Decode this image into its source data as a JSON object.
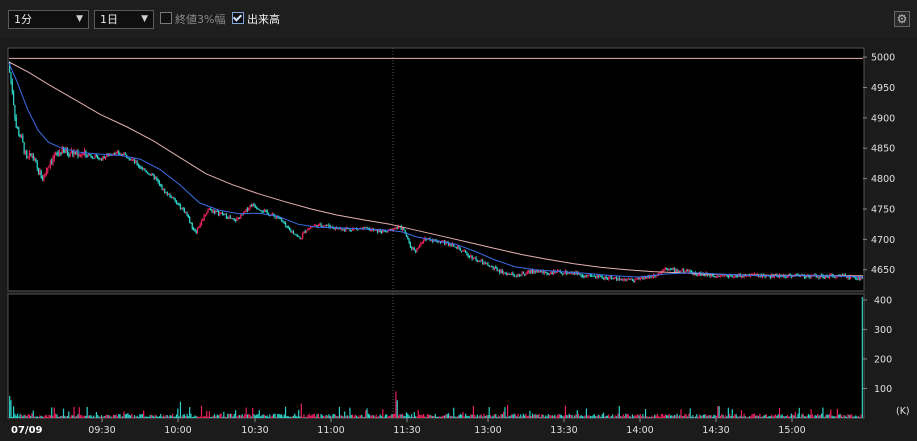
{
  "toolbar": {
    "interval_select": "1分",
    "range_select": "1日",
    "close_3pct_label": "終値3%幅",
    "close_3pct_checked": false,
    "volume_label": "出来高",
    "volume_checked": true
  },
  "colors": {
    "up": "#e8215a",
    "down": "#2ed2c8",
    "ma_short": "#3a6fe8",
    "ma_long": "#e6b0b0",
    "limit_line": "#e6b0b0"
  },
  "chart_data": {
    "type": "candlestick",
    "date_label": "07/09",
    "price_axis": {
      "ylim": [
        4615,
        5015
      ],
      "ticks": [
        "5000",
        "4950",
        "4900",
        "4850",
        "4800",
        "4750",
        "4700",
        "4650"
      ]
    },
    "volume_axis": {
      "ylim": [
        0,
        420
      ],
      "ticks": [
        "400",
        "300",
        "200",
        "100"
      ],
      "unit": "(K)"
    },
    "x_labels": [
      "09:30",
      "10:00",
      "10:30",
      "11:00",
      "11:30",
      "13:00",
      "13:30",
      "14:00",
      "14:30",
      "15:00"
    ],
    "reference_line": 4998,
    "price_path": [
      [
        0,
        4990
      ],
      [
        3,
        4945
      ],
      [
        6,
        4885
      ],
      [
        10,
        4865
      ],
      [
        14,
        4830
      ],
      [
        18,
        4840
      ],
      [
        22,
        4815
      ],
      [
        26,
        4800
      ],
      [
        32,
        4830
      ],
      [
        40,
        4845
      ],
      [
        50,
        4842
      ],
      [
        60,
        4840
      ],
      [
        70,
        4832
      ],
      [
        80,
        4843
      ],
      [
        90,
        4838
      ],
      [
        100,
        4820
      ],
      [
        106,
        4810
      ],
      [
        112,
        4800
      ],
      [
        118,
        4780
      ],
      [
        124,
        4770
      ],
      [
        130,
        4755
      ],
      [
        135,
        4745
      ],
      [
        140,
        4720
      ],
      [
        143,
        4713
      ],
      [
        148,
        4735
      ],
      [
        152,
        4750
      ],
      [
        158,
        4745
      ],
      [
        165,
        4740
      ],
      [
        172,
        4730
      ],
      [
        178,
        4740
      ],
      [
        185,
        4758
      ],
      [
        190,
        4752
      ],
      [
        198,
        4742
      ],
      [
        206,
        4736
      ],
      [
        212,
        4718
      ],
      [
        218,
        4710
      ],
      [
        222,
        4700
      ],
      [
        226,
        4715
      ],
      [
        232,
        4722
      ],
      [
        240,
        4724
      ],
      [
        250,
        4718
      ],
      [
        260,
        4717
      ],
      [
        270,
        4718
      ],
      [
        280,
        4714
      ],
      [
        288,
        4712
      ],
      [
        295,
        4720
      ],
      [
        300,
        4718
      ],
      [
        303,
        4705
      ],
      [
        306,
        4688
      ],
      [
        310,
        4682
      ],
      [
        314,
        4692
      ],
      [
        318,
        4702
      ],
      [
        325,
        4698
      ],
      [
        332,
        4695
      ],
      [
        340,
        4690
      ],
      [
        346,
        4680
      ],
      [
        352,
        4672
      ],
      [
        358,
        4665
      ],
      [
        366,
        4656
      ],
      [
        374,
        4648
      ],
      [
        382,
        4642
      ],
      [
        390,
        4642
      ],
      [
        400,
        4648
      ],
      [
        410,
        4645
      ],
      [
        420,
        4646
      ],
      [
        430,
        4645
      ],
      [
        440,
        4640
      ],
      [
        450,
        4638
      ],
      [
        460,
        4636
      ],
      [
        470,
        4634
      ],
      [
        480,
        4635
      ],
      [
        490,
        4640
      ],
      [
        496,
        4645
      ],
      [
        500,
        4655
      ],
      [
        504,
        4650
      ],
      [
        512,
        4648
      ],
      [
        520,
        4645
      ],
      [
        530,
        4642
      ],
      [
        540,
        4641
      ],
      [
        550,
        4640
      ],
      [
        560,
        4640
      ],
      [
        570,
        4641
      ],
      [
        580,
        4639
      ],
      [
        590,
        4640
      ],
      [
        600,
        4641
      ],
      [
        610,
        4640
      ],
      [
        620,
        4638
      ],
      [
        628,
        4640
      ],
      [
        636,
        4639
      ],
      [
        644,
        4637
      ],
      [
        650,
        4636
      ]
    ],
    "ma_short_path": [
      [
        0,
        4990
      ],
      [
        6,
        4960
      ],
      [
        14,
        4915
      ],
      [
        22,
        4880
      ],
      [
        30,
        4860
      ],
      [
        40,
        4850
      ],
      [
        55,
        4843
      ],
      [
        70,
        4840
      ],
      [
        85,
        4838
      ],
      [
        100,
        4832
      ],
      [
        115,
        4815
      ],
      [
        130,
        4790
      ],
      [
        145,
        4760
      ],
      [
        160,
        4748
      ],
      [
        175,
        4742
      ],
      [
        190,
        4743
      ],
      [
        205,
        4738
      ],
      [
        220,
        4725
      ],
      [
        235,
        4720
      ],
      [
        250,
        4719
      ],
      [
        270,
        4717
      ],
      [
        290,
        4715
      ],
      [
        300,
        4712
      ],
      [
        310,
        4704
      ],
      [
        325,
        4698
      ],
      [
        340,
        4692
      ],
      [
        355,
        4680
      ],
      [
        370,
        4666
      ],
      [
        385,
        4655
      ],
      [
        400,
        4650
      ],
      [
        420,
        4647
      ],
      [
        440,
        4644
      ],
      [
        460,
        4640
      ],
      [
        480,
        4638
      ],
      [
        500,
        4643
      ],
      [
        520,
        4645
      ],
      [
        540,
        4643
      ],
      [
        560,
        4641
      ],
      [
        580,
        4640
      ],
      [
        600,
        4640
      ],
      [
        620,
        4640
      ],
      [
        640,
        4639
      ],
      [
        650,
        4638
      ]
    ],
    "ma_long_path": [
      [
        0,
        4992
      ],
      [
        15,
        4975
      ],
      [
        30,
        4955
      ],
      [
        50,
        4930
      ],
      [
        70,
        4905
      ],
      [
        90,
        4885
      ],
      [
        110,
        4862
      ],
      [
        130,
        4835
      ],
      [
        150,
        4808
      ],
      [
        170,
        4790
      ],
      [
        190,
        4775
      ],
      [
        210,
        4762
      ],
      [
        230,
        4750
      ],
      [
        250,
        4740
      ],
      [
        270,
        4732
      ],
      [
        290,
        4725
      ],
      [
        310,
        4715
      ],
      [
        330,
        4705
      ],
      [
        350,
        4695
      ],
      [
        370,
        4685
      ],
      [
        390,
        4675
      ],
      [
        410,
        4667
      ],
      [
        430,
        4660
      ],
      [
        450,
        4654
      ],
      [
        470,
        4650
      ],
      [
        490,
        4647
      ],
      [
        510,
        4645
      ],
      [
        530,
        4643
      ],
      [
        550,
        4642
      ],
      [
        570,
        4641
      ],
      [
        590,
        4641
      ],
      [
        610,
        4640
      ],
      [
        630,
        4640
      ],
      [
        650,
        4640
      ]
    ],
    "volume_highlights": [
      [
        0,
        75
      ],
      [
        1,
        60
      ],
      [
        3,
        40
      ],
      [
        130,
        55
      ],
      [
        294,
        90
      ],
      [
        295,
        60
      ],
      [
        540,
        40
      ],
      [
        610,
        30
      ],
      [
        649,
        410
      ]
    ]
  }
}
